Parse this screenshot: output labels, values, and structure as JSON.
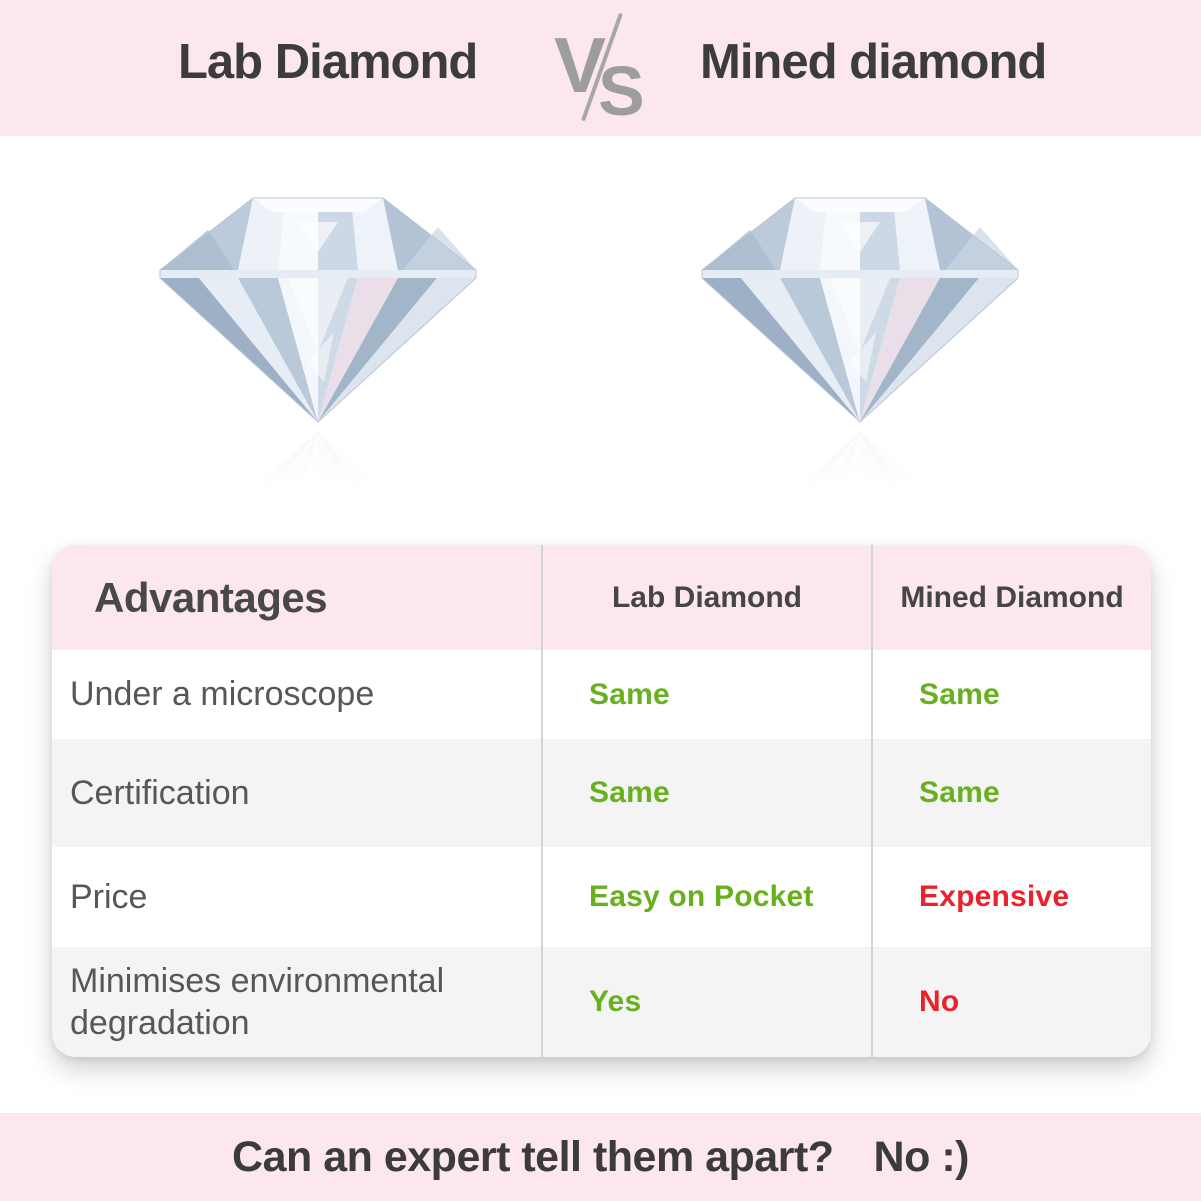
{
  "header": {
    "left_title": "Lab Diamond",
    "right_title": "Mined diamond",
    "vs_v": "V",
    "vs_s": "S"
  },
  "gems": {
    "left_icon": "lab-diamond-gem-icon",
    "right_icon": "mined-diamond-gem-icon"
  },
  "table": {
    "columns": [
      "Advantages",
      "Lab Diamond",
      "Mined Diamond"
    ],
    "rows": [
      {
        "label": "Under a microscope",
        "lab": {
          "text": "Same",
          "status": "good"
        },
        "mined": {
          "text": "Same",
          "status": "good"
        }
      },
      {
        "label": "Certification",
        "lab": {
          "text": "Same",
          "status": "good"
        },
        "mined": {
          "text": "Same",
          "status": "good"
        }
      },
      {
        "label": "Price",
        "lab": {
          "text": "Easy on Pocket",
          "status": "good"
        },
        "mined": {
          "text": "Expensive",
          "status": "bad"
        }
      },
      {
        "label": "Minimises environmental degradation",
        "lab": {
          "text": "Yes",
          "status": "good"
        },
        "mined": {
          "text": "No",
          "status": "bad"
        }
      }
    ]
  },
  "footer": {
    "question": "Can an expert tell them apart?",
    "answer": "No :)"
  },
  "colors": {
    "accent_pink": "#fce8ec",
    "good_green": "#68b01e",
    "bad_red": "#e9222b",
    "vs_gray": "#9d9d9d",
    "dark_text": "#3c3c3e"
  }
}
